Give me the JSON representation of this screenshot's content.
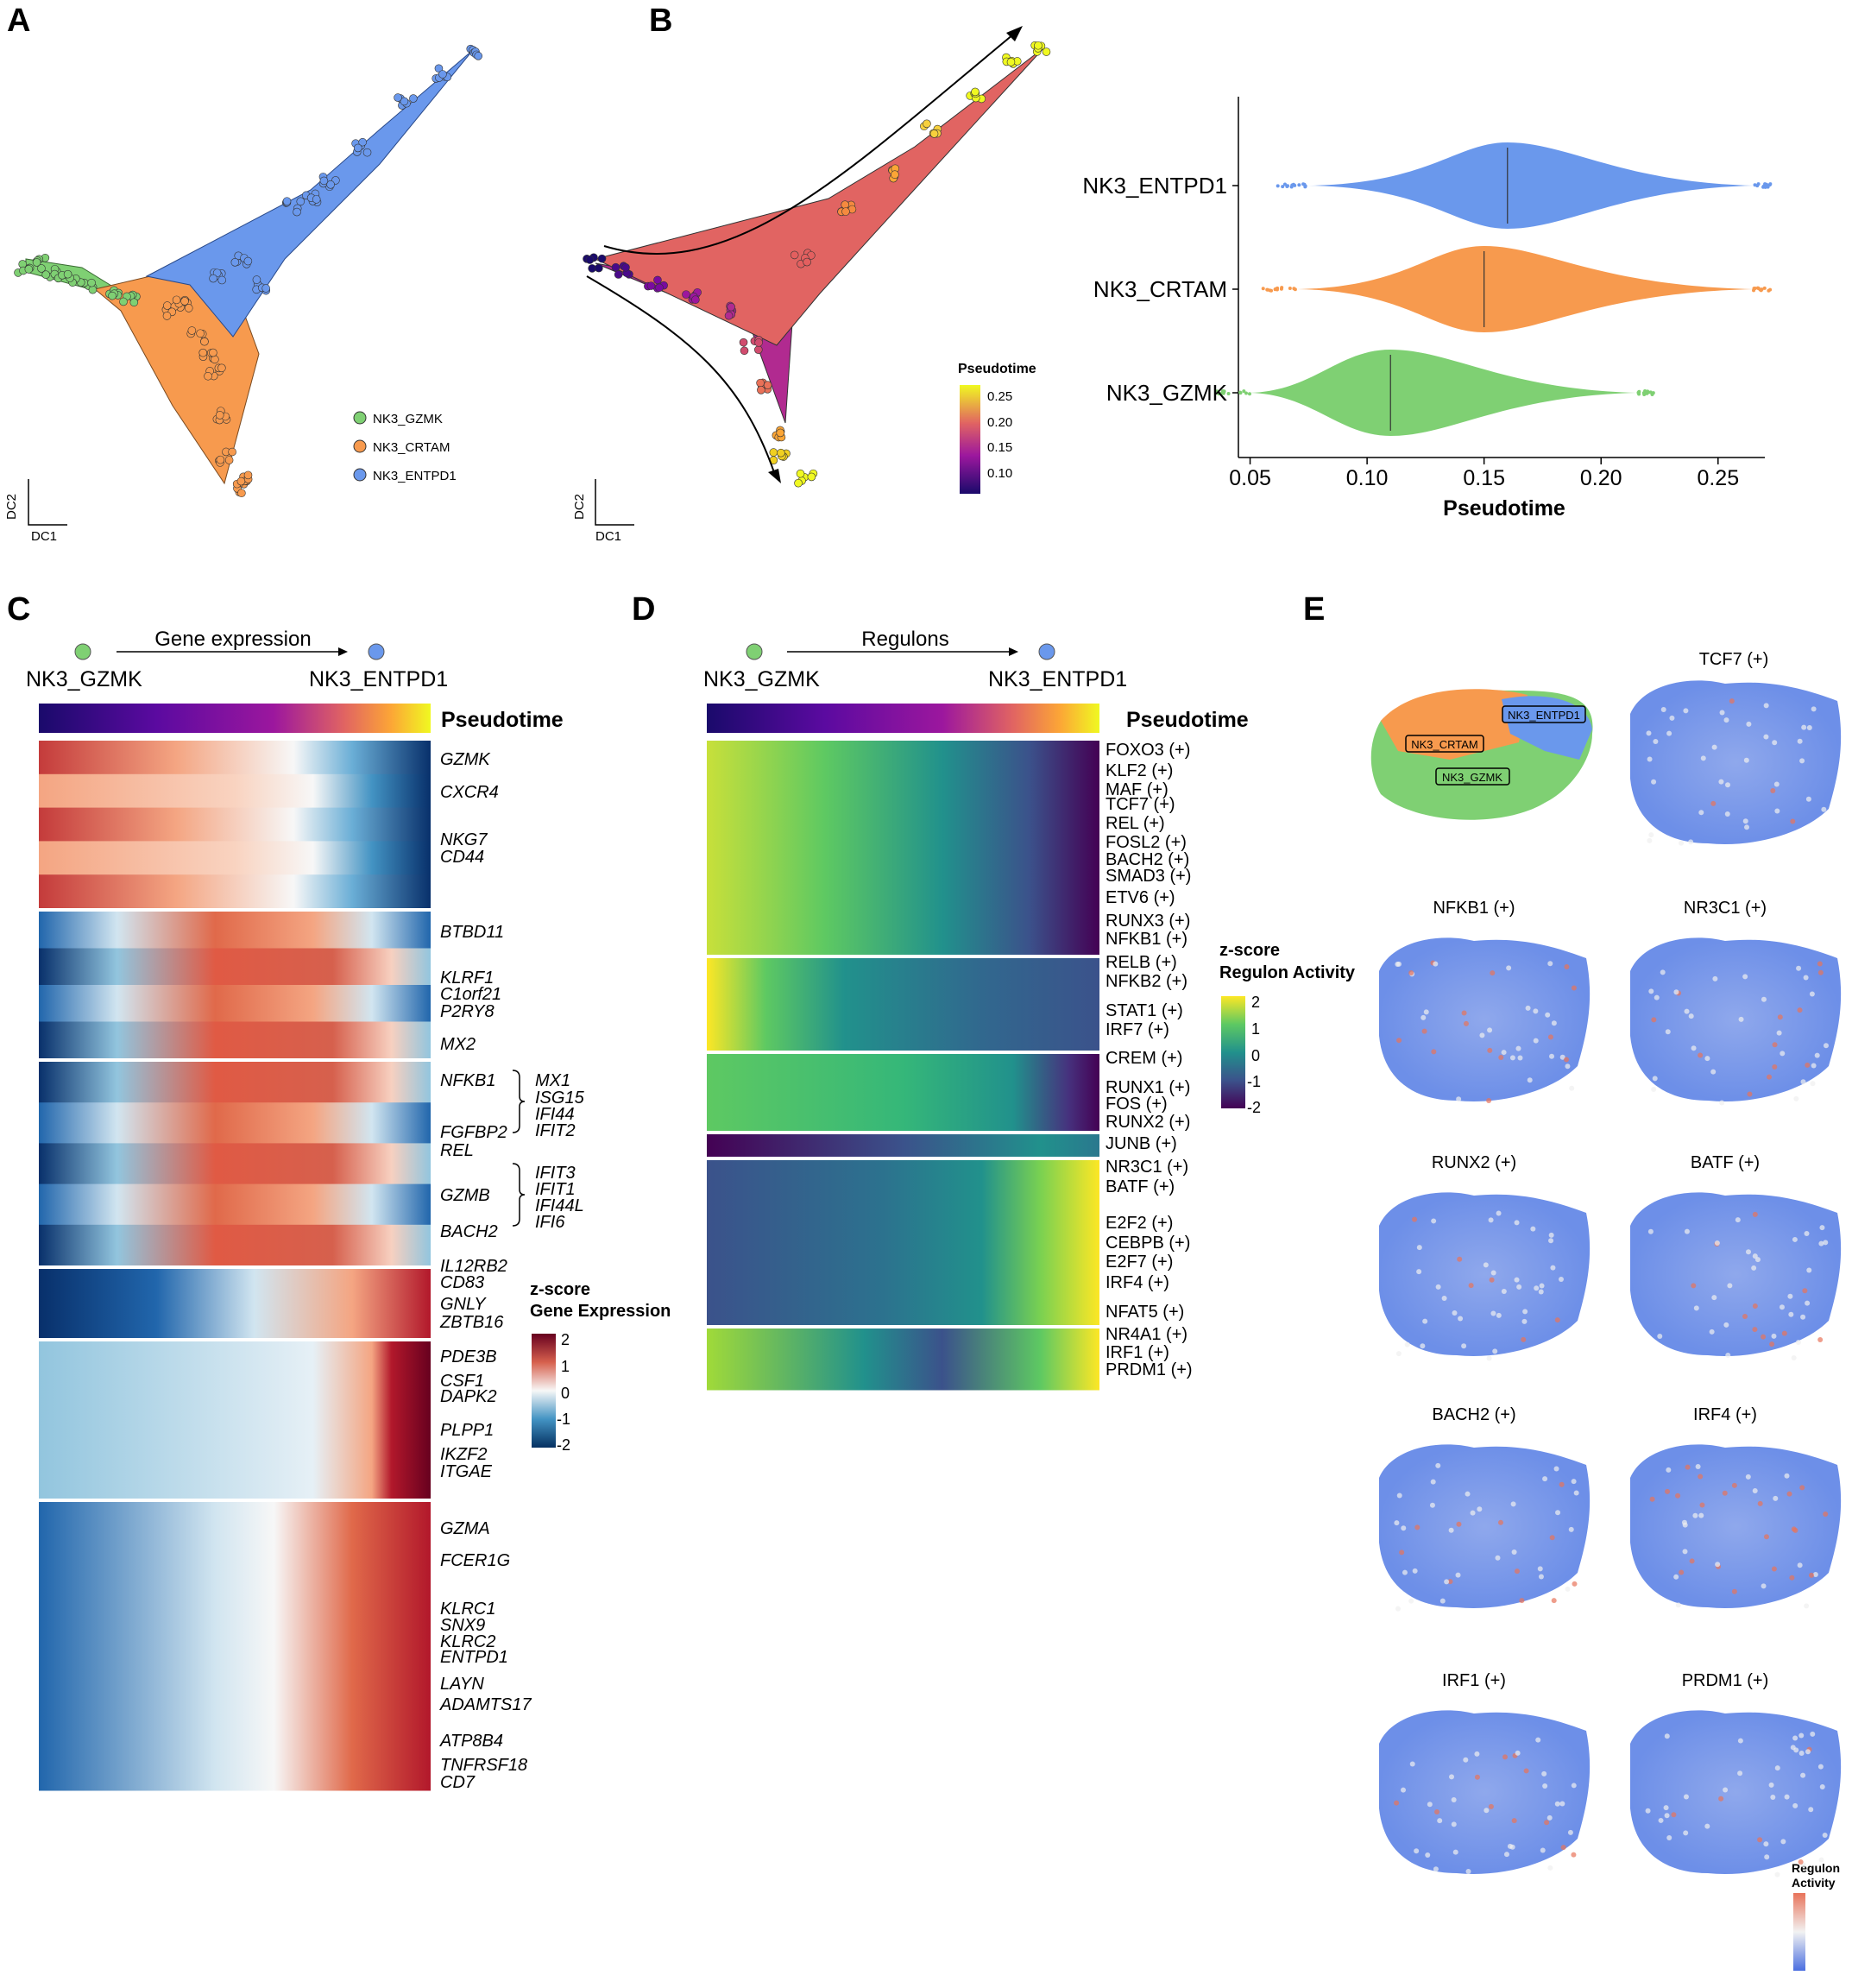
{
  "panels": {
    "a": "A",
    "b": "B",
    "c": "C",
    "d": "D",
    "e": "E"
  },
  "colors": {
    "gzmk": "#7fd073",
    "crtam": "#f79a4e",
    "entpd1": "#6a98ec",
    "heat_gene": [
      "#08306b",
      "#2166ac",
      "#92c5de",
      "#f7f7f7",
      "#f4a582",
      "#d6604d",
      "#67001f"
    ],
    "heat_reg": [
      "#440154",
      "#3b528b",
      "#21918c",
      "#5ec962",
      "#fde725"
    ],
    "pseudotime": [
      "#1a0a6b",
      "#6a00a8",
      "#b12a90",
      "#e16462",
      "#fca636",
      "#f0f921"
    ],
    "activity": [
      "#4a6ee0",
      "#f2f2f2",
      "#e8735a"
    ]
  },
  "panel_a": {
    "legend": [
      "NK3_GZMK",
      "NK3_CRTAM",
      "NK3_ENTPD1"
    ],
    "axis_x": "DC1",
    "axis_y": "DC2"
  },
  "panel_b": {
    "colorbar_title": "Pseudotime",
    "colorbar_ticks": [
      "0.25",
      "0.20",
      "0.15",
      "0.10"
    ],
    "axis_x": "DC1",
    "axis_y": "DC2"
  },
  "chart_data": [
    {
      "type": "scatter",
      "title": "",
      "xlabel": "Pseudotime",
      "ylabel": "",
      "xlim": [
        0.045,
        0.27
      ],
      "ticks": [
        "0.05",
        "0.10",
        "0.15",
        "0.20",
        "0.25"
      ],
      "categories": [
        "NK3_ENTPD1",
        "NK3_CRTAM",
        "NK3_GZMK"
      ],
      "medians": [
        0.16,
        0.15,
        0.11
      ]
    }
  ],
  "panel_c": {
    "header": "Gene expression",
    "from": "NK3_GZMK",
    "to": "NK3_ENTPD1",
    "pt_label": "Pseudotime",
    "colorbar_title1": "z-score",
    "colorbar_title2": "Gene Expression",
    "colorbar_ticks": [
      "2",
      "1",
      "0",
      "-1",
      "-2"
    ],
    "genes": [
      "GZMK",
      "CXCR4",
      "NKG7",
      "CD44",
      "BTBD11",
      "KLRF1",
      "C1orf21",
      "P2RY8",
      "MX2",
      "NFKB1",
      "FGFBP2",
      "REL",
      "GZMB",
      "BACH2",
      "IL12RB2",
      "CD83",
      "GNLY",
      "ZBTB16",
      "PDE3B",
      "CSF1",
      "DAPK2",
      "PLPP1",
      "IKZF2",
      "ITGAE",
      "GZMA",
      "FCER1G",
      "KLRC1",
      "SNX9",
      "KLRC2",
      "ENTPD1",
      "LAYN",
      "ADAMTS17",
      "ATP8B4",
      "TNFRSF18",
      "CD7"
    ],
    "group1": [
      "MX1",
      "ISG15",
      "IFI44",
      "IFIT2"
    ],
    "group2": [
      "IFIT3",
      "IFIT1",
      "IFI44L",
      "IFI6"
    ]
  },
  "panel_d": {
    "header": "Regulons",
    "from": "NK3_GZMK",
    "to": "NK3_ENTPD1",
    "pt_label": "Pseudotime",
    "colorbar_title1": "z-score",
    "colorbar_title2": "Regulon Activity",
    "colorbar_ticks": [
      "2",
      "1",
      "0",
      "-1",
      "-2"
    ],
    "regulons": [
      "FOXO3 (+)",
      "KLF2 (+)",
      "MAF (+)",
      "TCF7 (+)",
      "REL (+)",
      "FOSL2 (+)",
      "BACH2 (+)",
      "SMAD3 (+)",
      "ETV6 (+)",
      "RUNX3 (+)",
      "NFKB1 (+)",
      "RELB (+)",
      "NFKB2 (+)",
      "STAT1 (+)",
      "IRF7 (+)",
      "CREM (+)",
      "RUNX1 (+)",
      "FOS (+)",
      "RUNX2 (+)",
      "JUNB (+)",
      "NR3C1 (+)",
      "BATF (+)",
      "E2F2 (+)",
      "CEBPB (+)",
      "E2F7 (+)",
      "IRF4 (+)",
      "NFAT5 (+)",
      "NR4A1 (+)",
      "IRF1 (+)",
      "PRDM1 (+)"
    ]
  },
  "panel_e": {
    "cluster_labels": [
      "NK3_ENTPD1",
      "NK3_CRTAM",
      "NK3_GZMK"
    ],
    "titles": [
      "TCF7 (+)",
      "NFKB1 (+)",
      "NR3C1 (+)",
      "RUNX2 (+)",
      "BATF (+)",
      "BACH2 (+)",
      "IRF4 (+)",
      "IRF1 (+)",
      "PRDM1 (+)"
    ],
    "legend1": "Regulon",
    "legend2": "Activity"
  }
}
